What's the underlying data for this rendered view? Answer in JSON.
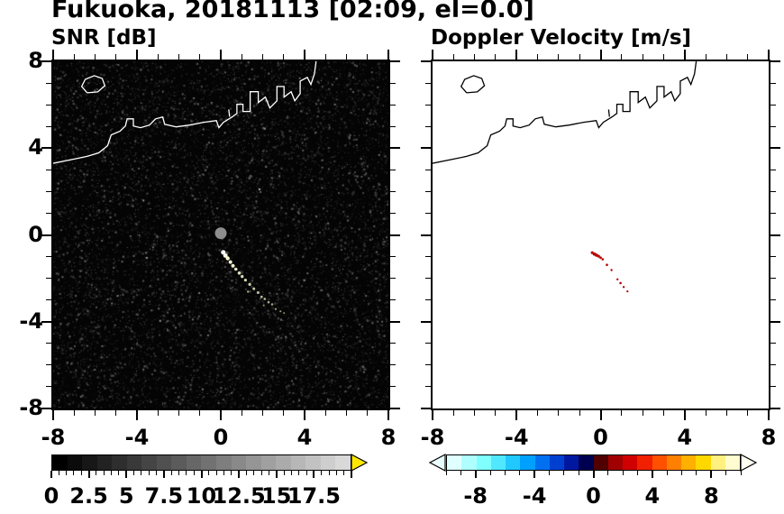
{
  "title": "Fukuoka, 20181113 [02:09, el=0.0]",
  "chart_data": {
    "type": "heatmap",
    "layout": "two-panel radar PPI display with colorbars",
    "panels": [
      {
        "title": "SNR [dB]",
        "xlim": [
          -8,
          8
        ],
        "ylim": [
          -8,
          8
        ],
        "xticks": [
          -8,
          -4,
          0,
          4,
          8
        ],
        "xtick_labels": [
          "-8",
          "-4",
          "0",
          "4",
          "8"
        ],
        "yticks": [
          8,
          4,
          0,
          -4,
          -8
        ],
        "ytick_labels": [
          "8",
          "4",
          "0",
          "-4",
          "-8"
        ],
        "minor_tick_step": 1,
        "background_color": "#000000",
        "coastline_color": "#ffffff",
        "noise": {
          "seed": 20181113,
          "count": 12500
        },
        "center_blob": {
          "x": 0.0,
          "y": 0.08,
          "r": 0.28,
          "color": "#8e8e8e"
        },
        "echo_points": [
          [
            0.12,
            -0.8,
            2.6,
            "#ffffff"
          ],
          [
            0.22,
            -0.95,
            2.4,
            "#ffffee"
          ],
          [
            0.33,
            -1.08,
            2.2,
            "#ffffcc"
          ],
          [
            0.46,
            -1.25,
            2.0,
            "#f2f2d8"
          ],
          [
            0.58,
            -1.42,
            2.0,
            "#ececc8"
          ],
          [
            0.72,
            -1.58,
            1.8,
            "#e4e4c4"
          ],
          [
            0.88,
            -1.76,
            1.8,
            "#dedebe"
          ],
          [
            1.02,
            -1.92,
            1.7,
            "#d8d8b8"
          ],
          [
            1.18,
            -2.08,
            1.6,
            "#d2d2b2"
          ],
          [
            1.38,
            -2.28,
            1.6,
            "#ccccaa"
          ],
          [
            1.58,
            -2.48,
            1.5,
            "#c6c6a6"
          ],
          [
            1.78,
            -2.66,
            1.5,
            "#c0c0a0"
          ],
          [
            1.3,
            -2.62,
            1.2,
            "#a8a890"
          ],
          [
            1.95,
            -2.85,
            1.4,
            "#b8b898"
          ],
          [
            2.1,
            -2.95,
            1.4,
            "#b0b090"
          ],
          [
            2.28,
            -3.1,
            1.3,
            "#a8a888"
          ],
          [
            2.45,
            -3.2,
            1.3,
            "#a0a080"
          ],
          [
            2.62,
            -3.42,
            1.2,
            "#989878"
          ],
          [
            2.85,
            -3.52,
            1.1,
            "#909070"
          ],
          [
            2.05,
            -3.25,
            1.1,
            "#888868"
          ],
          [
            3.02,
            -3.6,
            1.0,
            "#8a8a6a"
          ]
        ]
      },
      {
        "title": "Doppler Velocity [m/s]",
        "xlim": [
          -8,
          8
        ],
        "ylim": [
          -8,
          8
        ],
        "xticks": [
          -8,
          -4,
          0,
          4,
          8
        ],
        "xtick_labels": [
          "-8",
          "-4",
          "0",
          "4",
          "8"
        ],
        "yticks": [
          8,
          4,
          0,
          -4,
          -8
        ],
        "ytick_labels": [
          "8",
          "4",
          "0",
          "-4",
          "-8"
        ],
        "minor_tick_step": 1,
        "background_color": "#ffffff",
        "coastline_color": "#000000",
        "velocity_point_color": "#b80000",
        "velocity_points": [
          [
            -0.4,
            -0.82,
            1.6
          ],
          [
            -0.3,
            -0.88,
            1.8
          ],
          [
            -0.2,
            -0.93,
            1.8
          ],
          [
            -0.1,
            -0.98,
            1.6
          ],
          [
            0.0,
            -1.05,
            1.4
          ],
          [
            0.1,
            -1.12,
            1.3
          ],
          [
            0.3,
            -1.38,
            1.3
          ],
          [
            0.52,
            -1.62,
            1.2
          ],
          [
            0.8,
            -2.05,
            1.2
          ],
          [
            0.95,
            -2.22,
            1.3
          ],
          [
            1.1,
            -2.4,
            1.2
          ],
          [
            1.28,
            -2.6,
            1.1
          ]
        ]
      }
    ],
    "coastline_paths": [
      [
        [
          -8.0,
          3.3
        ],
        [
          -7.02,
          3.49
        ],
        [
          -6.38,
          3.62
        ],
        [
          -5.83,
          3.78
        ],
        [
          -5.4,
          4.11
        ],
        [
          -5.23,
          4.61
        ],
        [
          -4.81,
          4.78
        ],
        [
          -4.55,
          5.02
        ],
        [
          -4.47,
          5.35
        ],
        [
          -4.17,
          5.35
        ],
        [
          -4.17,
          5.02
        ],
        [
          -3.83,
          4.94
        ],
        [
          -3.4,
          5.06
        ],
        [
          -3.11,
          5.35
        ],
        [
          -2.77,
          5.43
        ],
        [
          -2.68,
          5.1
        ],
        [
          -2.13,
          4.98
        ],
        [
          -1.49,
          5.06
        ],
        [
          -0.81,
          5.19
        ],
        [
          -0.21,
          5.27
        ],
        [
          -0.09,
          4.94
        ],
        [
          0.13,
          5.19
        ],
        [
          0.55,
          5.44
        ],
        [
          0.77,
          5.6
        ],
        [
          0.77,
          6.02
        ],
        [
          1.06,
          6.02
        ],
        [
          1.06,
          5.69
        ],
        [
          1.4,
          5.69
        ],
        [
          1.4,
          6.6
        ],
        [
          1.79,
          6.6
        ],
        [
          1.79,
          6.1
        ],
        [
          2.13,
          6.35
        ],
        [
          2.34,
          5.85
        ],
        [
          2.68,
          6.18
        ],
        [
          2.68,
          6.84
        ],
        [
          3.02,
          6.84
        ],
        [
          3.02,
          6.35
        ],
        [
          3.36,
          6.6
        ],
        [
          3.53,
          6.18
        ],
        [
          3.79,
          6.51
        ],
        [
          3.79,
          7.09
        ],
        [
          4.13,
          7.26
        ],
        [
          4.3,
          6.93
        ],
        [
          4.47,
          7.42
        ],
        [
          4.55,
          8.0
        ]
      ],
      [
        [
          -6.38,
          6.55
        ],
        [
          -6.64,
          6.84
        ],
        [
          -6.47,
          7.17
        ],
        [
          -6.04,
          7.34
        ],
        [
          -5.66,
          7.21
        ],
        [
          -5.53,
          6.88
        ],
        [
          -5.87,
          6.59
        ],
        [
          -6.38,
          6.55
        ]
      ],
      [
        [
          0.38,
          5.78
        ],
        [
          0.42,
          5.45
        ]
      ]
    ],
    "colorbars": [
      {
        "panel": "snr",
        "range": [
          0,
          20
        ],
        "tick_values": [
          0,
          2.5,
          5,
          7.5,
          10,
          12.5,
          15,
          17.5
        ],
        "tick_labels": [
          "0",
          "2.5",
          "5",
          "7.5",
          "10",
          "12.5",
          "15",
          "17.5"
        ],
        "minor_step": 0.5,
        "major_step": 2.5,
        "colors": [
          "#000000",
          "#0b0b0b",
          "#171717",
          "#222222",
          "#2e2e2e",
          "#393939",
          "#454545",
          "#505050",
          "#5b5b5b",
          "#676767",
          "#727272",
          "#7e7e7e",
          "#898989",
          "#959595",
          "#a0a0a0",
          "#ababab",
          "#b7b7b7",
          "#c2c2c2",
          "#cecece",
          "#d9d9d9"
        ],
        "arrow_left_color": null,
        "arrow_right_color": "#ffe800"
      },
      {
        "panel": "doppler",
        "range": [
          -10,
          10
        ],
        "tick_values": [
          -8,
          -4,
          0,
          4,
          8
        ],
        "tick_labels": [
          "-8",
          "-4",
          "0",
          "4",
          "8"
        ],
        "minor_step": 1,
        "major_step": 4,
        "colors": [
          "#e0ffff",
          "#b0ffff",
          "#80ffff",
          "#50e8ff",
          "#20c8ff",
          "#00a0ff",
          "#0070f0",
          "#0040d0",
          "#0018a0",
          "#000050",
          "#500000",
          "#a00000",
          "#d00000",
          "#f02000",
          "#ff5000",
          "#ff8000",
          "#ffb000",
          "#ffd800",
          "#fff080",
          "#fffcd0"
        ],
        "arrow_left_color": "#eaffff",
        "arrow_right_color": "#fffff2"
      }
    ]
  }
}
